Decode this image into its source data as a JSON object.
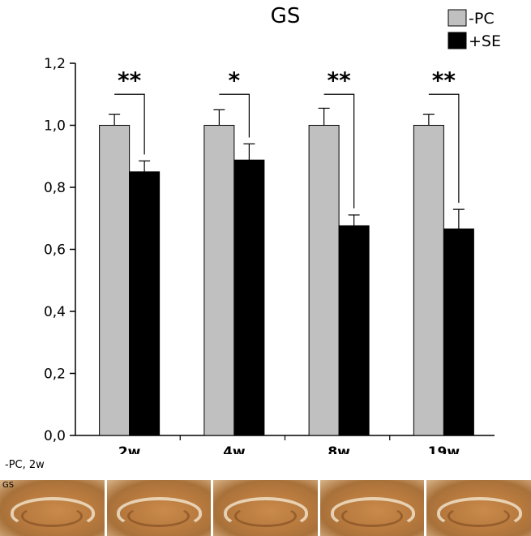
{
  "chart_data": {
    "type": "bar",
    "title": "GS",
    "categories": [
      "2w",
      "4w",
      "8w",
      "19w"
    ],
    "series": [
      {
        "name": "-PC",
        "color": "#c0c0c0",
        "values": [
          1.0,
          1.0,
          1.0,
          1.0
        ],
        "errors": [
          0.035,
          0.05,
          0.055,
          0.035
        ]
      },
      {
        "name": "+SE",
        "color": "#000000",
        "values": [
          0.85,
          0.888,
          0.676,
          0.666
        ],
        "errors": [
          0.035,
          0.052,
          0.035,
          0.063
        ]
      }
    ],
    "significance": [
      "**",
      "*",
      "**",
      "**"
    ],
    "ylim": [
      0,
      1.2
    ],
    "yticks": [
      "0,0",
      "0,2",
      "0,4",
      "0,6",
      "0,8",
      "1,0",
      "1,2"
    ],
    "xlabel": "",
    "ylabel": "",
    "grid": false,
    "legend_position": "top-right"
  },
  "image_strip": {
    "caption": "-PC, 2w",
    "tag": "GS",
    "tiles": 5
  }
}
